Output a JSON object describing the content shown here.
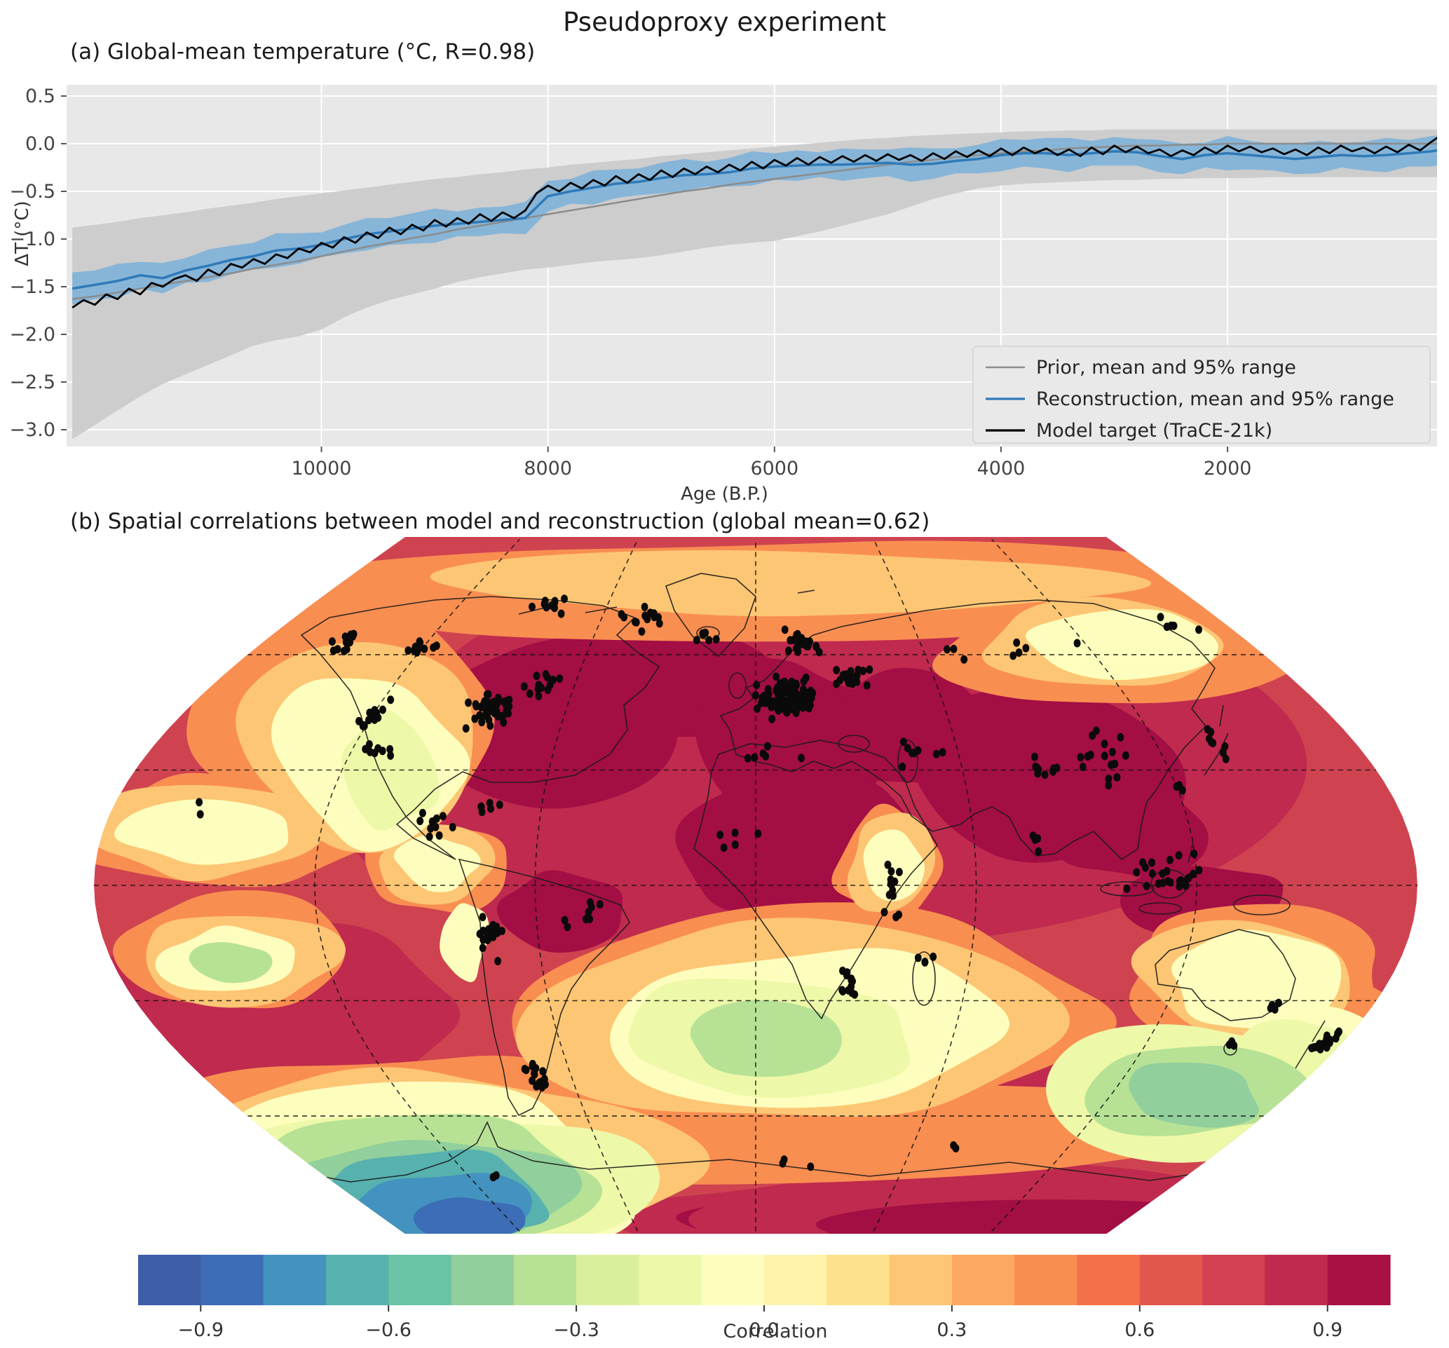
{
  "figure": {
    "title": "Pseudoproxy experiment"
  },
  "panel_a": {
    "label": "(a) Global-mean temperature (°C, R=0.98)",
    "correlation_R": 0.98,
    "background": "#e8e8e8",
    "grid_color": "#ffffff",
    "tick_color": "#444444"
  },
  "panel_b": {
    "label": "(b) Spatial correlations between model and reconstruction (global mean=0.62)",
    "global_mean": 0.62,
    "dot_color": "#0a0a0a",
    "coast_color": "#1b1b1b"
  },
  "chart_data": [
    {
      "type": "line",
      "title": "(a) Global-mean temperature (°C, R=0.98)",
      "xlabel": "Age (B.P.)",
      "ylabel": "ΔT (°C)",
      "x_domain": [
        12250,
        150
      ],
      "x_reversed": true,
      "ylim": [
        -3.18,
        0.615
      ],
      "xticks": [
        10000,
        8000,
        6000,
        4000,
        2000
      ],
      "yticks": [
        0.5,
        0.0,
        -0.5,
        -1.0,
        -1.5,
        -2.0,
        -2.5,
        -3.0
      ],
      "grid": true,
      "legend_position": "lower right",
      "band_ages": [
        12200,
        12000,
        11800,
        11600,
        11400,
        11200,
        11000,
        10800,
        10600,
        10400,
        10200,
        10000,
        9800,
        9600,
        9400,
        9200,
        9000,
        8800,
        8600,
        8400,
        8200,
        8000,
        7800,
        7600,
        7400,
        7200,
        7000,
        6800,
        6600,
        6400,
        6200,
        6000,
        5800,
        5600,
        5400,
        5200,
        5000,
        4800,
        4600,
        4400,
        4200,
        4000,
        3800,
        3600,
        3400,
        3200,
        3000,
        2800,
        2600,
        2400,
        2200,
        2000,
        1800,
        1600,
        1400,
        1200,
        1000,
        800,
        600,
        400,
        200,
        0
      ],
      "series": [
        {
          "name": "Prior, mean and 95% range",
          "line_color": "#8c8c8c",
          "band_color": "#cbcbcb",
          "mean": [
            -1.63,
            -1.6,
            -1.56,
            -1.52,
            -1.48,
            -1.44,
            -1.4,
            -1.36,
            -1.31,
            -1.27,
            -1.23,
            -1.18,
            -1.13,
            -1.08,
            -1.04,
            -0.99,
            -0.95,
            -0.9,
            -0.86,
            -0.82,
            -0.78,
            -0.74,
            -0.7,
            -0.66,
            -0.62,
            -0.58,
            -0.54,
            -0.5,
            -0.47,
            -0.43,
            -0.4,
            -0.37,
            -0.34,
            -0.31,
            -0.28,
            -0.25,
            -0.22,
            -0.19,
            -0.17,
            -0.14,
            -0.12,
            -0.1,
            -0.08,
            -0.07,
            -0.05,
            -0.04,
            -0.03,
            -0.02,
            -0.02,
            -0.01,
            -0.01,
            0.0,
            0.0,
            0.0,
            0.0,
            0.0,
            0.0,
            0.0,
            0.0,
            0.0,
            0.0,
            0.0
          ],
          "upper": [
            -0.88,
            -0.85,
            -0.82,
            -0.78,
            -0.75,
            -0.72,
            -0.68,
            -0.65,
            -0.62,
            -0.58,
            -0.55,
            -0.52,
            -0.49,
            -0.46,
            -0.43,
            -0.4,
            -0.37,
            -0.35,
            -0.32,
            -0.3,
            -0.27,
            -0.25,
            -0.22,
            -0.2,
            -0.18,
            -0.16,
            -0.13,
            -0.11,
            -0.09,
            -0.07,
            -0.05,
            -0.03,
            -0.01,
            0.01,
            0.03,
            0.05,
            0.06,
            0.08,
            0.09,
            0.1,
            0.11,
            0.12,
            0.13,
            0.13,
            0.14,
            0.14,
            0.15,
            0.15,
            0.15,
            0.15,
            0.15,
            0.15,
            0.15,
            0.15,
            0.15,
            0.15,
            0.15,
            0.15,
            0.15,
            0.15,
            0.15,
            0.15
          ],
          "lower": [
            -3.1,
            -2.95,
            -2.8,
            -2.65,
            -2.52,
            -2.42,
            -2.32,
            -2.22,
            -2.12,
            -2.06,
            -2.02,
            -1.95,
            -1.82,
            -1.72,
            -1.64,
            -1.58,
            -1.52,
            -1.45,
            -1.4,
            -1.36,
            -1.32,
            -1.3,
            -1.27,
            -1.24,
            -1.22,
            -1.2,
            -1.17,
            -1.13,
            -1.09,
            -1.06,
            -1.04,
            -1.02,
            -0.97,
            -0.92,
            -0.86,
            -0.8,
            -0.74,
            -0.66,
            -0.58,
            -0.52,
            -0.47,
            -0.44,
            -0.42,
            -0.41,
            -0.4,
            -0.39,
            -0.38,
            -0.38,
            -0.37,
            -0.37,
            -0.36,
            -0.36,
            -0.36,
            -0.35,
            -0.35,
            -0.35,
            -0.35,
            -0.35,
            -0.35,
            -0.35,
            -0.35,
            -0.35
          ]
        },
        {
          "name": "Reconstruction, mean and 95% range",
          "line_color": "#2f7ab8",
          "band_color": "#7fb2d9",
          "mean": [
            -1.52,
            -1.48,
            -1.44,
            -1.38,
            -1.41,
            -1.33,
            -1.28,
            -1.22,
            -1.18,
            -1.12,
            -1.1,
            -1.06,
            -1.0,
            -0.95,
            -0.92,
            -0.89,
            -0.86,
            -0.84,
            -0.82,
            -0.8,
            -0.78,
            -0.55,
            -0.5,
            -0.46,
            -0.42,
            -0.4,
            -0.36,
            -0.33,
            -0.32,
            -0.3,
            -0.26,
            -0.24,
            -0.23,
            -0.22,
            -0.22,
            -0.21,
            -0.2,
            -0.22,
            -0.21,
            -0.18,
            -0.16,
            -0.12,
            -0.1,
            -0.1,
            -0.12,
            -0.1,
            -0.08,
            -0.09,
            -0.13,
            -0.16,
            -0.12,
            -0.1,
            -0.12,
            -0.14,
            -0.16,
            -0.14,
            -0.12,
            -0.13,
            -0.12,
            -0.1,
            -0.08,
            -0.04
          ],
          "half_width": [
            0.17,
            0.15,
            0.18,
            0.14,
            0.16,
            0.13,
            0.17,
            0.15,
            0.14,
            0.18,
            0.16,
            0.13,
            0.15,
            0.17,
            0.14,
            0.16,
            0.18,
            0.13,
            0.15,
            0.14,
            0.17,
            0.16,
            0.13,
            0.18,
            0.15,
            0.14,
            0.16,
            0.17,
            0.13,
            0.15,
            0.18,
            0.14,
            0.16,
            0.13,
            0.17,
            0.15,
            0.14,
            0.18,
            0.16,
            0.13,
            0.15,
            0.17,
            0.14,
            0.16,
            0.18,
            0.13,
            0.15,
            0.14,
            0.17,
            0.16,
            0.13,
            0.18,
            0.15,
            0.14,
            0.16,
            0.17,
            0.13,
            0.15,
            0.18,
            0.14,
            0.16,
            0.15
          ]
        },
        {
          "name": "Model target (TraCE-21k)",
          "line_color": "#000000",
          "start_age": 12200,
          "age_step": 100,
          "values": [
            -1.72,
            -1.64,
            -1.69,
            -1.58,
            -1.63,
            -1.52,
            -1.58,
            -1.46,
            -1.5,
            -1.42,
            -1.38,
            -1.44,
            -1.32,
            -1.38,
            -1.26,
            -1.3,
            -1.21,
            -1.26,
            -1.16,
            -1.2,
            -1.1,
            -1.14,
            -1.04,
            -1.09,
            -0.98,
            -1.04,
            -0.93,
            -0.99,
            -0.88,
            -0.95,
            -0.85,
            -0.91,
            -0.8,
            -0.87,
            -0.78,
            -0.84,
            -0.74,
            -0.81,
            -0.72,
            -0.78,
            -0.7,
            -0.52,
            -0.44,
            -0.5,
            -0.41,
            -0.47,
            -0.38,
            -0.44,
            -0.34,
            -0.41,
            -0.32,
            -0.38,
            -0.28,
            -0.35,
            -0.26,
            -0.32,
            -0.24,
            -0.3,
            -0.22,
            -0.28,
            -0.19,
            -0.26,
            -0.17,
            -0.23,
            -0.15,
            -0.22,
            -0.14,
            -0.2,
            -0.13,
            -0.19,
            -0.12,
            -0.18,
            -0.11,
            -0.17,
            -0.12,
            -0.18,
            -0.1,
            -0.16,
            -0.08,
            -0.14,
            -0.07,
            -0.13,
            -0.05,
            -0.12,
            -0.04,
            -0.1,
            -0.05,
            -0.12,
            -0.06,
            -0.13,
            -0.04,
            -0.11,
            -0.02,
            -0.09,
            -0.03,
            -0.1,
            -0.06,
            -0.13,
            -0.07,
            -0.12,
            -0.04,
            -0.1,
            -0.02,
            -0.08,
            -0.03,
            -0.09,
            -0.05,
            -0.11,
            -0.06,
            -0.12,
            -0.04,
            -0.1,
            -0.02,
            -0.08,
            -0.04,
            -0.1,
            -0.03,
            -0.09,
            -0.01,
            -0.07,
            0.02,
            0.1,
            0.42
          ]
        }
      ]
    },
    {
      "type": "heatmap",
      "title": "(b) Spatial correlations between model and reconstruction (global mean=0.62)",
      "projection": "robinson",
      "global_mean": 0.62,
      "colorbar": {
        "label": "Correlation",
        "ticks": [
          -0.9,
          -0.6,
          -0.3,
          0.0,
          0.3,
          0.6,
          0.9
        ],
        "range": [
          -1,
          1
        ],
        "n_bins": 20,
        "colors": [
          "#3e5fa8",
          "#3c6db6",
          "#4492bf",
          "#57b1ae",
          "#6ac3a5",
          "#91cf9c",
          "#b7e295",
          "#d9ef9b",
          "#eef8a9",
          "#fdfebd",
          "#fff3ac",
          "#fee18c",
          "#fdc674",
          "#fda860",
          "#f98e51",
          "#f4704a",
          "#e2574b",
          "#d24153",
          "#bf2a4e",
          "#a91144"
        ]
      },
      "regions": [
        {
          "name": "Most land masses (N. America, Europe, Asia, Africa, Antarctica)",
          "correlation": 0.95
        },
        {
          "name": "Tropical and mid-latitude oceans (background)",
          "correlation": 0.75
        },
        {
          "name": "Arctic coast band",
          "correlation": 0.5
        },
        {
          "name": "Northeast Pacific / Alaska",
          "correlation": 0.05
        },
        {
          "name": "Northeast Siberia coast",
          "correlation": 0.1
        },
        {
          "name": "Central East Pacific near Hawaii",
          "correlation": 0.1
        },
        {
          "name": "Southeast Pacific patch",
          "correlation": -0.1
        },
        {
          "name": "Subtropical South Atlantic and SW Indian Ocean",
          "correlation": 0.05
        },
        {
          "name": "Interior Australia",
          "correlation": 0.1
        },
        {
          "name": "Tasman Sea / south of Australia",
          "correlation": -0.3
        },
        {
          "name": "Around New Zealand",
          "correlation": 0.1
        },
        {
          "name": "Southern Ocean SW of South America",
          "correlation": -0.75
        }
      ],
      "proxy_network": {
        "seed": 42,
        "dot_radius": 5,
        "clusters": [
          {
            "lat": 64,
            "lon": -150,
            "n": 12,
            "slat": 3,
            "slon": 6
          },
          {
            "lat": 62,
            "lon": -122,
            "n": 10,
            "slat": 4,
            "slon": 6
          },
          {
            "lat": 44,
            "lon": -120,
            "n": 14,
            "slat": 4,
            "slon": 3
          },
          {
            "lat": 36,
            "lon": -112,
            "n": 8,
            "slat": 3,
            "slon": 4
          },
          {
            "lat": 46,
            "lon": -84,
            "n": 58,
            "slat": 4,
            "slon": 7
          },
          {
            "lat": 52,
            "lon": -70,
            "n": 12,
            "slat": 3,
            "slon": 5
          },
          {
            "lat": 70,
            "lon": -45,
            "n": 14,
            "slat": 4,
            "slon": 9
          },
          {
            "lat": 65,
            "lon": -19,
            "n": 6,
            "slat": 2,
            "slon": 4
          },
          {
            "lat": 63,
            "lon": 16,
            "n": 20,
            "slat": 3,
            "slon": 7
          },
          {
            "lat": 49,
            "lon": 10,
            "n": 110,
            "slat": 4.5,
            "slon": 8
          },
          {
            "lat": 54,
            "lon": 32,
            "n": 26,
            "slat": 3,
            "slon": 7
          },
          {
            "lat": 62,
            "lon": 90,
            "n": 8,
            "slat": 3,
            "slon": 22
          },
          {
            "lat": 33,
            "lon": 105,
            "n": 16,
            "slat": 7,
            "slon": 10
          },
          {
            "lat": 37,
            "lon": 138,
            "n": 8,
            "slat": 3,
            "slon": 3
          },
          {
            "lat": 3,
            "lon": 113,
            "n": 26,
            "slat": 6,
            "slon": 10
          },
          {
            "lat": 30,
            "lon": 82,
            "n": 10,
            "slat": 3,
            "slon": 6
          },
          {
            "lat": 35,
            "lon": 48,
            "n": 8,
            "slat": 4,
            "slon": 6
          },
          {
            "lat": 0,
            "lon": 37,
            "n": 14,
            "slat": 7,
            "slon": 3
          },
          {
            "lat": -26,
            "lon": 27,
            "n": 12,
            "slat": 4,
            "slon": 4
          },
          {
            "lat": -19,
            "lon": 47,
            "n": 4,
            "slat": 2,
            "slon": 2
          },
          {
            "lat": 12,
            "lon": -3,
            "n": 5,
            "slat": 4,
            "slon": 8
          },
          {
            "lat": -13,
            "lon": -73,
            "n": 20,
            "slat": 7,
            "slon": 3
          },
          {
            "lat": -50,
            "lon": -71,
            "n": 18,
            "slat": 4,
            "slon": 3
          },
          {
            "lat": -8,
            "lon": -48,
            "n": 8,
            "slat": 5,
            "slon": 7
          },
          {
            "lat": 16,
            "lon": -89,
            "n": 10,
            "slat": 4,
            "slon": 5
          },
          {
            "lat": 20,
            "lon": -75,
            "n": 6,
            "slat": 2,
            "slon": 5
          },
          {
            "lat": -41,
            "lon": 174,
            "n": 15,
            "slat": 3,
            "slon": 3
          },
          {
            "lat": -31,
            "lon": 151,
            "n": 4,
            "slat": 3,
            "slon": 3
          },
          {
            "lat": -42,
            "lon": 146,
            "n": 3,
            "slat": 2,
            "slon": 2
          },
          {
            "lat": 34,
            "lon": 4,
            "n": 6,
            "slat": 3,
            "slon": 8
          },
          {
            "lat": 73,
            "lon": -82,
            "n": 10,
            "slat": 2,
            "slon": 8
          },
          {
            "lat": -72,
            "lon": 10,
            "n": 3,
            "slat": 2,
            "slon": 25
          },
          {
            "lat": -68,
            "lon": 75,
            "n": 2,
            "slat": 2,
            "slon": 5
          },
          {
            "lat": -75,
            "lon": -105,
            "n": 2,
            "slat": 2,
            "slon": 8
          },
          {
            "lat": 20,
            "lon": -156,
            "n": 2,
            "slat": 2,
            "slon": 2
          },
          {
            "lat": 68,
            "lon": 160,
            "n": 5,
            "slat": 3,
            "slon": 8
          },
          {
            "lat": 10,
            "lon": 77,
            "n": 4,
            "slat": 3,
            "slon": 2
          },
          {
            "lat": 25,
            "lon": 121,
            "n": 4,
            "slat": 3,
            "slon": 2
          }
        ]
      },
      "graticule": {
        "latitudes": [
          60,
          30,
          0,
          -30,
          -60
        ],
        "longitudes": [
          -120,
          -60,
          0,
          60,
          120
        ]
      }
    }
  ]
}
